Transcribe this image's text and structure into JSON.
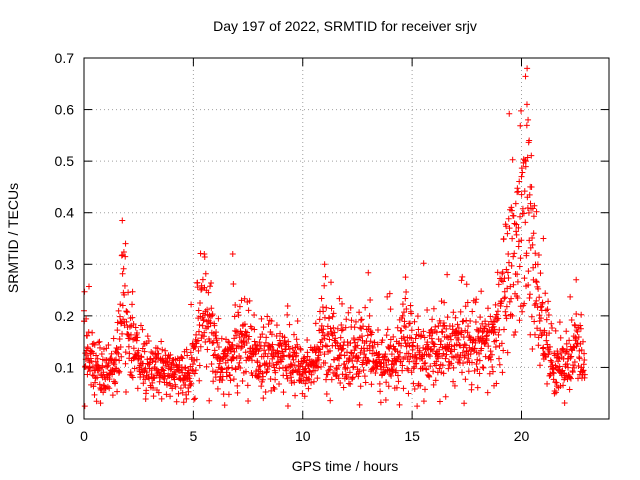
{
  "chart_data": {
    "type": "scatter",
    "title": "Day 197 of 2022, SRMTID for receiver srjv",
    "xlabel": "GPS time / hours",
    "ylabel": "SRMTID / TECUs",
    "xlim": [
      0,
      24
    ],
    "ylim": [
      0,
      0.7
    ],
    "x_ticks": [
      0,
      5,
      10,
      15,
      20
    ],
    "x_tick_labels": [
      "0",
      "5",
      "10",
      "15",
      "20"
    ],
    "y_ticks": [
      0,
      0.1,
      0.2,
      0.3,
      0.4,
      0.5,
      0.6,
      0.7
    ],
    "y_tick_labels": [
      "0",
      "0.1",
      "0.2",
      "0.3",
      "0.4",
      "0.5",
      "0.6",
      "0.7"
    ],
    "grid": true,
    "marker": "+",
    "marker_color": "#ff0000",
    "x_data_range": [
      0,
      22.9
    ],
    "series": [
      {
        "name": "SRMTID",
        "baseline_profile": [
          [
            0.0,
            0.17
          ],
          [
            0.3,
            0.12
          ],
          [
            0.6,
            0.09
          ],
          [
            1.0,
            0.09
          ],
          [
            1.4,
            0.1
          ],
          [
            1.7,
            0.16
          ],
          [
            1.85,
            0.25
          ],
          [
            2.1,
            0.14
          ],
          [
            2.5,
            0.12
          ],
          [
            3.0,
            0.1
          ],
          [
            3.5,
            0.09
          ],
          [
            4.0,
            0.09
          ],
          [
            4.5,
            0.08
          ],
          [
            4.8,
            0.08
          ],
          [
            5.0,
            0.12
          ],
          [
            5.3,
            0.18
          ],
          [
            5.6,
            0.2
          ],
          [
            6.0,
            0.12
          ],
          [
            6.5,
            0.1
          ],
          [
            7.0,
            0.14
          ],
          [
            7.5,
            0.13
          ],
          [
            8.0,
            0.12
          ],
          [
            9.0,
            0.12
          ],
          [
            9.5,
            0.11
          ],
          [
            10.0,
            0.09
          ],
          [
            10.5,
            0.1
          ],
          [
            11.0,
            0.17
          ],
          [
            11.3,
            0.15
          ],
          [
            12.0,
            0.11
          ],
          [
            12.5,
            0.12
          ],
          [
            13.0,
            0.15
          ],
          [
            13.5,
            0.1
          ],
          [
            14.0,
            0.11
          ],
          [
            14.7,
            0.15
          ],
          [
            15.0,
            0.13
          ],
          [
            15.5,
            0.12
          ],
          [
            16.0,
            0.13
          ],
          [
            16.5,
            0.14
          ],
          [
            17.0,
            0.15
          ],
          [
            17.5,
            0.14
          ],
          [
            18.0,
            0.13
          ],
          [
            18.5,
            0.14
          ],
          [
            19.0,
            0.18
          ],
          [
            19.5,
            0.3
          ],
          [
            19.8,
            0.3
          ],
          [
            20.2,
            0.4
          ],
          [
            20.5,
            0.3
          ],
          [
            20.8,
            0.2
          ],
          [
            21.2,
            0.15
          ],
          [
            21.5,
            0.1
          ],
          [
            22.0,
            0.11
          ],
          [
            22.5,
            0.13
          ],
          [
            22.9,
            0.1
          ]
        ],
        "notable_points": [
          [
            0.0,
            0.21
          ],
          [
            1.75,
            0.385
          ],
          [
            1.9,
            0.34
          ],
          [
            5.5,
            0.32
          ],
          [
            6.8,
            0.32
          ],
          [
            7.2,
            0.23
          ],
          [
            11.0,
            0.3
          ],
          [
            14.7,
            0.275
          ],
          [
            16.6,
            0.28
          ],
          [
            20.25,
            0.61
          ],
          [
            20.3,
            0.58
          ],
          [
            20.35,
            0.54
          ],
          [
            20.2,
            0.5
          ],
          [
            19.8,
            0.44
          ],
          [
            20.0,
            0.47
          ],
          [
            20.4,
            0.45
          ],
          [
            21.0,
            0.35
          ],
          [
            22.5,
            0.27
          ]
        ]
      }
    ]
  }
}
